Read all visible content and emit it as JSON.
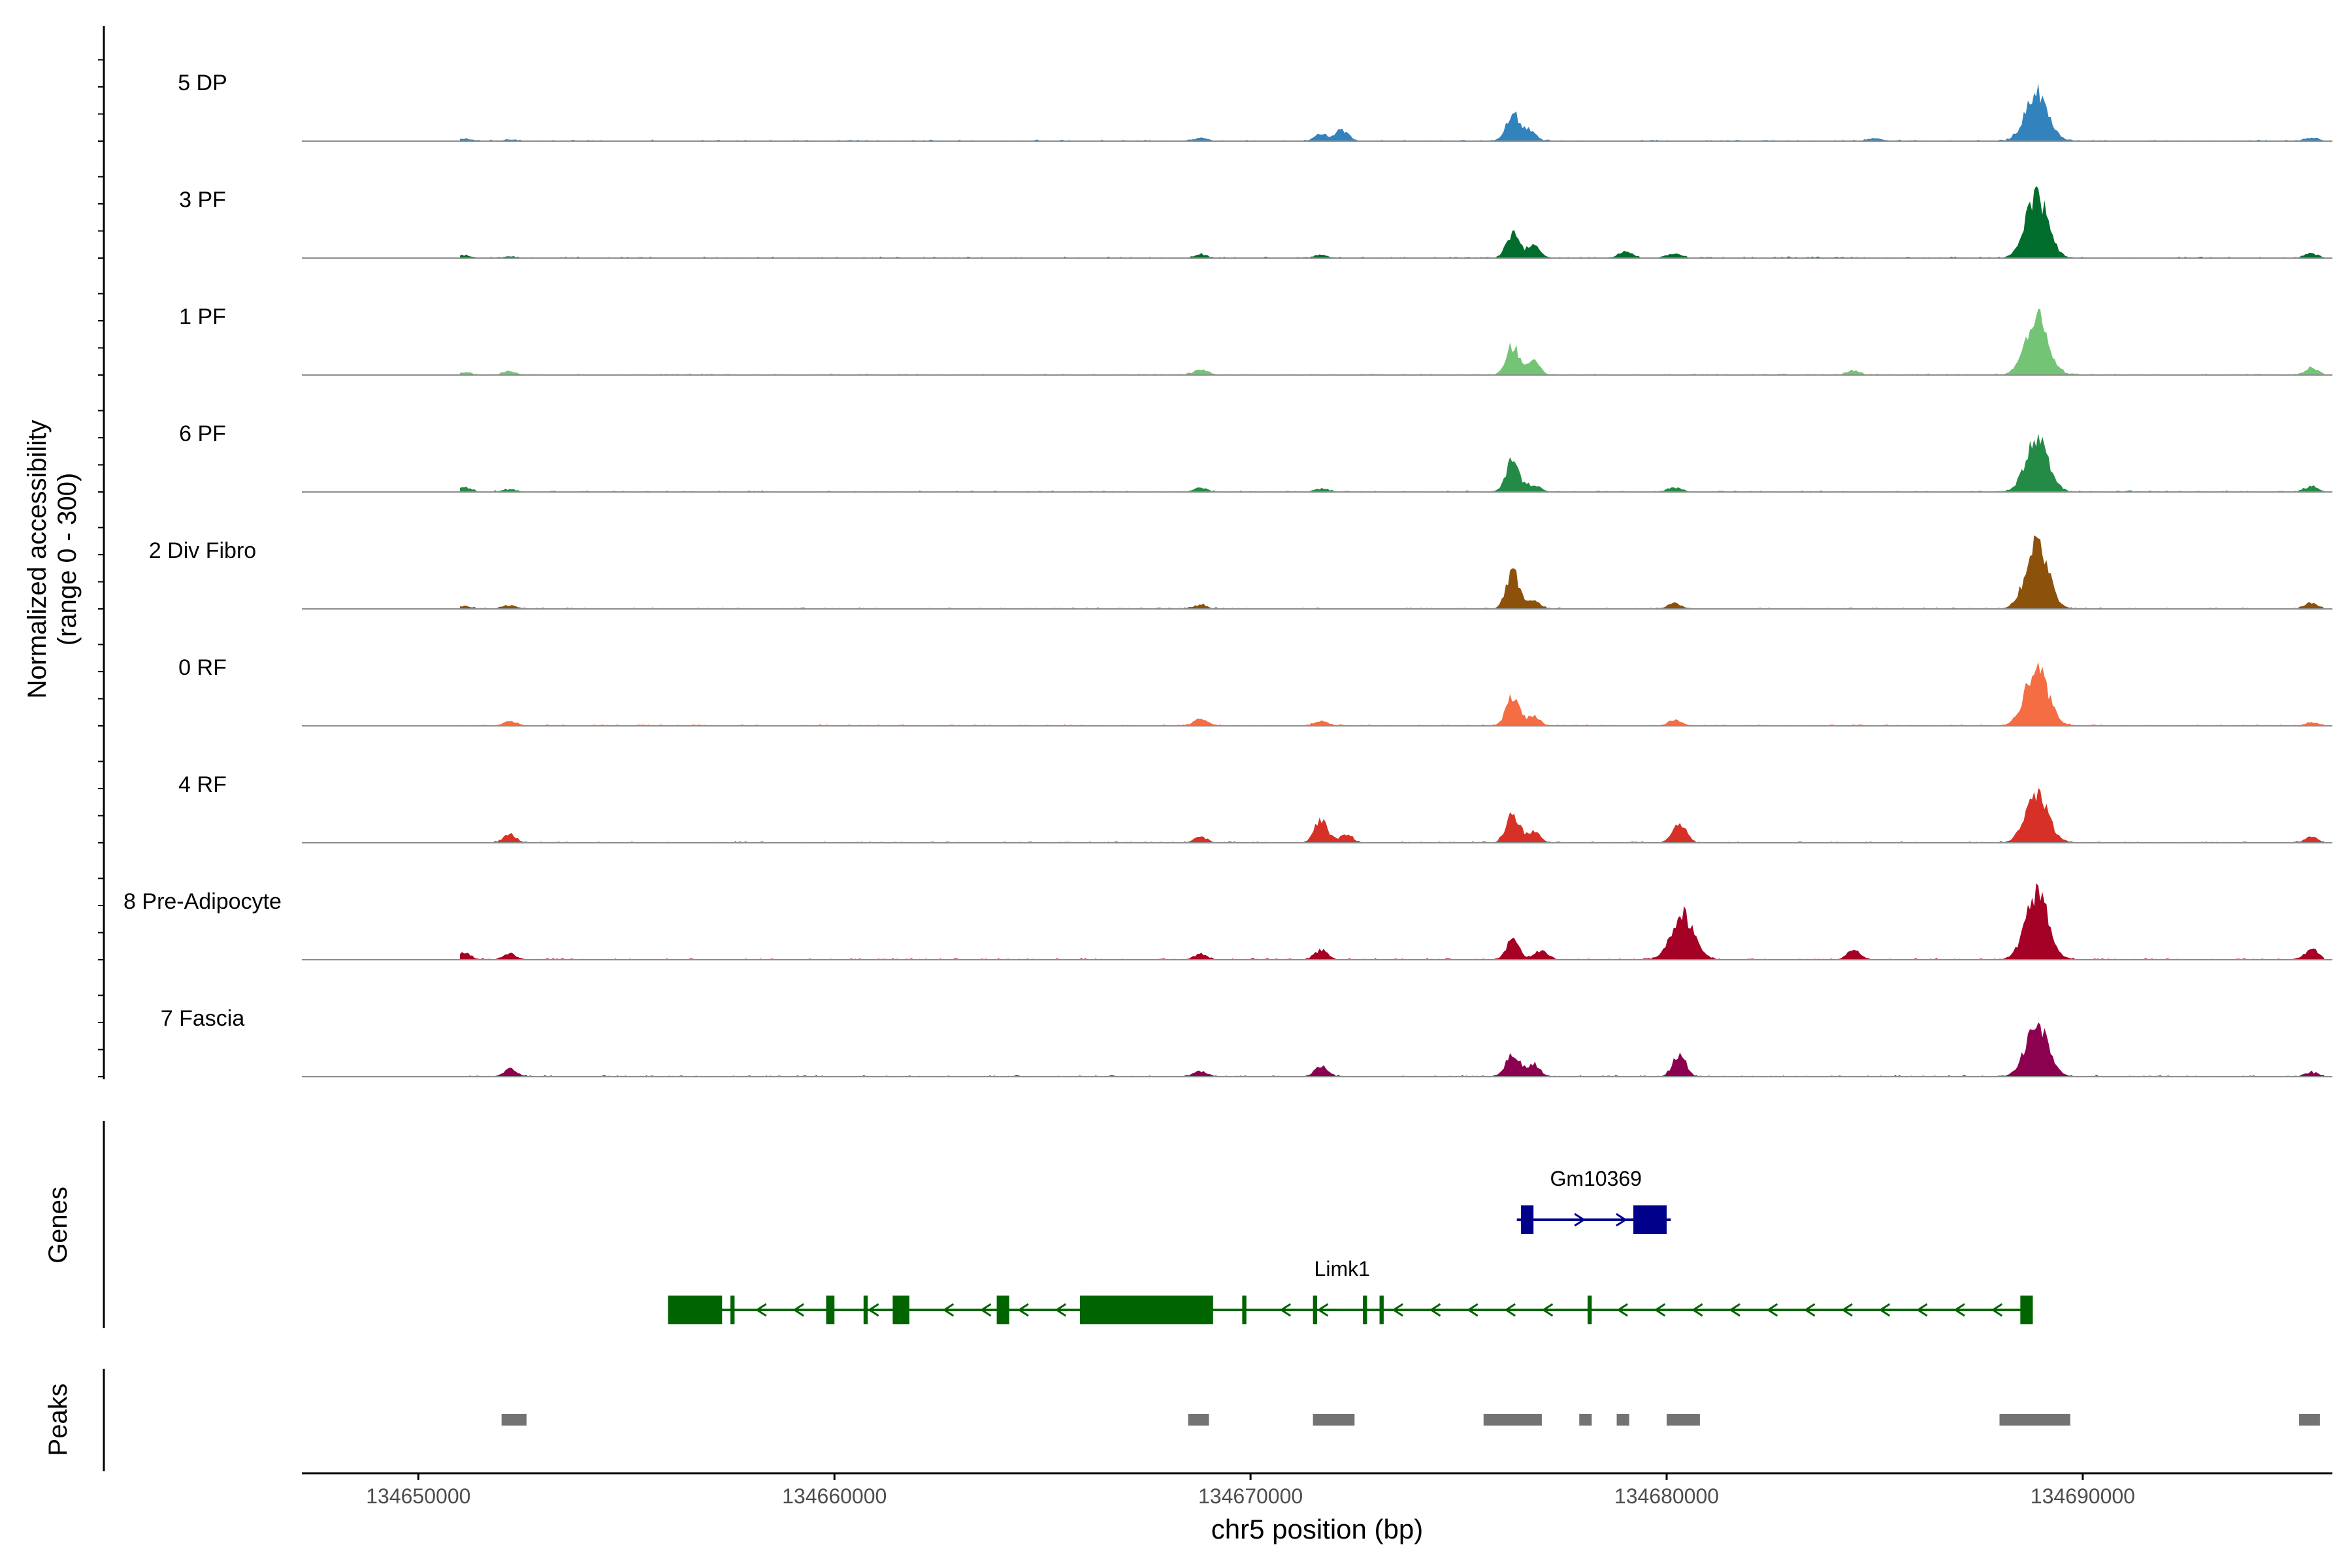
{
  "chart_data": {
    "type": "area",
    "title": "",
    "xlabel": "chr5 position (bp)",
    "ylabel_line1": "Normalized accessibility",
    "ylabel_line2": "(range 0 - 300)",
    "xlim": [
      134647200,
      134696000
    ],
    "ylim": [
      0,
      300
    ],
    "x_ticks": [
      134650000,
      134660000,
      134670000,
      134680000,
      134690000
    ],
    "x_tick_labels": [
      "134650000",
      "134660000",
      "134670000",
      "134680000",
      "134690000"
    ],
    "tracks": [
      {
        "name": "5 DP",
        "color": "#3182bd",
        "peaks": [
          [
            134651100,
            8
          ],
          [
            134652200,
            5
          ],
          [
            134668800,
            12
          ],
          [
            134671700,
            25
          ],
          [
            134672200,
            40
          ],
          [
            134676300,
            100
          ],
          [
            134676700,
            40
          ],
          [
            134685000,
            10
          ],
          [
            134688900,
            175
          ],
          [
            134695500,
            12
          ]
        ]
      },
      {
        "name": "3 PF",
        "color": "#006d2c",
        "peaks": [
          [
            134651100,
            8
          ],
          [
            134652200,
            5
          ],
          [
            134668800,
            12
          ],
          [
            134671700,
            10
          ],
          [
            134676300,
            90
          ],
          [
            134676800,
            45
          ],
          [
            134679000,
            25
          ],
          [
            134680200,
            15
          ],
          [
            134688900,
            215
          ],
          [
            134695500,
            15
          ]
        ]
      },
      {
        "name": "1 PF",
        "color": "#74c476",
        "peaks": [
          [
            134651100,
            8
          ],
          [
            134652200,
            12
          ],
          [
            134668800,
            20
          ],
          [
            134676300,
            105
          ],
          [
            134676800,
            45
          ],
          [
            134684500,
            15
          ],
          [
            134688900,
            205
          ],
          [
            134695500,
            25
          ]
        ]
      },
      {
        "name": "6 PF",
        "color": "#238b45",
        "peaks": [
          [
            134651100,
            15
          ],
          [
            134652200,
            8
          ],
          [
            134668800,
            15
          ],
          [
            134671700,
            12
          ],
          [
            134676300,
            115
          ],
          [
            134676800,
            25
          ],
          [
            134680200,
            15
          ],
          [
            134688900,
            185
          ],
          [
            134695500,
            20
          ]
        ]
      },
      {
        "name": "2 Div Fibro",
        "color": "#8c510a",
        "peaks": [
          [
            134651100,
            10
          ],
          [
            134652200,
            12
          ],
          [
            134668800,
            15
          ],
          [
            134676300,
            130
          ],
          [
            134676800,
            30
          ],
          [
            134680200,
            20
          ],
          [
            134688900,
            225
          ],
          [
            134695500,
            22
          ]
        ]
      },
      {
        "name": "0 RF",
        "color": "#f46d43",
        "peaks": [
          [
            134652200,
            15
          ],
          [
            134668800,
            25
          ],
          [
            134671700,
            15
          ],
          [
            134676300,
            110
          ],
          [
            134676800,
            30
          ],
          [
            134680200,
            20
          ],
          [
            134688900,
            205
          ],
          [
            134695500,
            12
          ]
        ]
      },
      {
        "name": "4 RF",
        "color": "#d73027",
        "peaks": [
          [
            134652200,
            30
          ],
          [
            134668800,
            20
          ],
          [
            134671700,
            85
          ],
          [
            134672300,
            30
          ],
          [
            134676300,
            105
          ],
          [
            134676800,
            40
          ],
          [
            134680300,
            75
          ],
          [
            134688900,
            175
          ],
          [
            134695500,
            20
          ]
        ]
      },
      {
        "name": "8 Pre-Adipocyte",
        "color": "#a50026",
        "peaks": [
          [
            134651100,
            25
          ],
          [
            134652200,
            20
          ],
          [
            134668800,
            20
          ],
          [
            134671700,
            35
          ],
          [
            134676300,
            70
          ],
          [
            134677000,
            35
          ],
          [
            134680400,
            160
          ],
          [
            134684500,
            35
          ],
          [
            134688900,
            245
          ],
          [
            134695500,
            40
          ]
        ]
      },
      {
        "name": "7 Fascia",
        "color": "#8c0050",
        "peaks": [
          [
            134652200,
            25
          ],
          [
            134668800,
            20
          ],
          [
            134671700,
            35
          ],
          [
            134676300,
            85
          ],
          [
            134676800,
            45
          ],
          [
            134680300,
            80
          ],
          [
            134688900,
            180
          ],
          [
            134695500,
            15
          ]
        ]
      }
    ],
    "genes_label": "Genes",
    "peaks_label": "Peaks",
    "genes": [
      {
        "name": "Gm10369",
        "strand": "+",
        "color": "#00008b",
        "start": 134676400,
        "end": 134680100,
        "exons": [
          [
            134676500,
            134676800
          ],
          [
            134679200,
            134680000
          ]
        ]
      },
      {
        "name": "Limk1",
        "strand": "-",
        "color": "#006400",
        "start": 134656000,
        "end": 134688800,
        "exons": [
          [
            134656000,
            134657300
          ],
          [
            134657500,
            134657600
          ],
          [
            134659800,
            134660000
          ],
          [
            134660700,
            134660800
          ],
          [
            134661400,
            134661800
          ],
          [
            134663900,
            134664200
          ],
          [
            134665900,
            134669100
          ],
          [
            134669800,
            134669900
          ],
          [
            134671500,
            134671600
          ],
          [
            134672700,
            134672800
          ],
          [
            134673100,
            134673200
          ],
          [
            134678100,
            134678200
          ],
          [
            134688500,
            134688800
          ]
        ]
      }
    ],
    "peak_regions": [
      [
        134652000,
        134652600
      ],
      [
        134668500,
        134669000
      ],
      [
        134671500,
        134672500
      ],
      [
        134675600,
        134677000
      ],
      [
        134677900,
        134678200
      ],
      [
        134678800,
        134679100
      ],
      [
        134680000,
        134680800
      ],
      [
        134688000,
        134689700
      ],
      [
        134695200,
        134695700
      ]
    ]
  }
}
